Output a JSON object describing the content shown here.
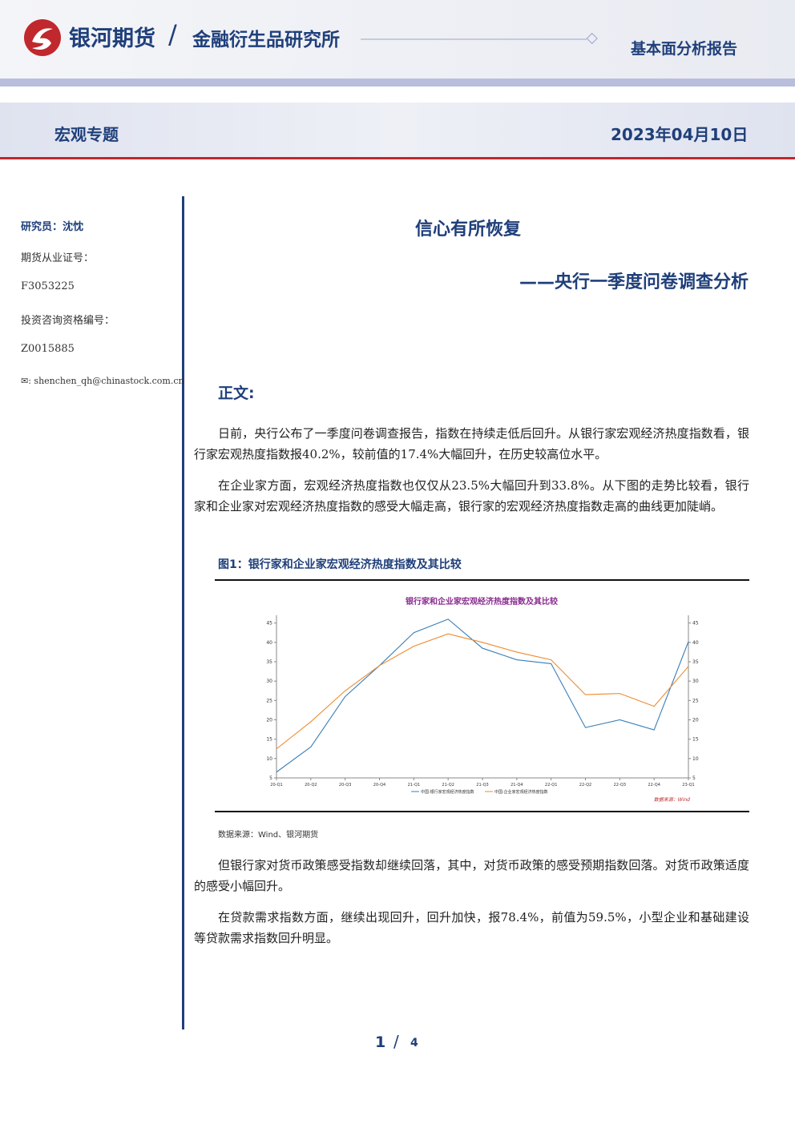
{
  "header": {
    "brand": "银河期货",
    "institute": "金融衍生品研究所",
    "report_type": "基本面分析报告",
    "section": "宏观专题",
    "date": "2023年04月10日"
  },
  "sidebar": {
    "researcher": "研究员：沈忱",
    "license_label": "期货从业证号：",
    "license_number": "F3053225",
    "advisor_label": "投资咨询资格编号：",
    "advisor_number": "Z0015885",
    "email": "shenchen_qh@chinastock.com.cn"
  },
  "article": {
    "title": "信心有所恢复",
    "subtitle": "——央行一季度问卷调查分析",
    "heading": "正文:",
    "paragraphs": [
      "日前，央行公布了一季度问卷调查报告，指数在持续走低后回升。从银行家宏观经济热度指数看，银行家宏观热度指数报40.2%，较前值的17.4%大幅回升，在历史较高位水平。",
      "在企业家方面，宏观经济热度指数也仅仅从23.5%大幅回升到33.8%。从下图的走势比较看，银行家和企业家对宏观经济热度指数的感受大幅走高，银行家的宏观经济热度指数走高的曲线更加陡峭。",
      "但银行家对货币政策感受指数却继续回落，其中，对货币政策的感受预期指数回落。对货币政策适度的感受小幅回升。",
      "在贷款需求指数方面，继续出现回升，回升加快，报78.4%，前值为59.5%，小型企业和基础建设等贷款需求指数回升明显。"
    ],
    "figure_caption": "图1：银行家和企业家宏观经济热度指数及其比较",
    "figure_source": "数据来源：Wind、银河期货"
  },
  "chart_data": {
    "type": "line",
    "title": "银行家和企业家宏观经济热度指数及其比较",
    "source": "数据来源：Wind",
    "categories": [
      "20-Q1",
      "20-Q2",
      "20-Q3",
      "20-Q4",
      "21-Q1",
      "21-Q2",
      "21-Q3",
      "21-Q4",
      "22-Q1",
      "22-Q2",
      "22-Q3",
      "22-Q4",
      "23-Q1"
    ],
    "series": [
      {
        "name": "中国:银行家宏观经济热度指数",
        "color": "#3a7fb8",
        "values": [
          6.5,
          13,
          26,
          34,
          42.5,
          46,
          38.5,
          35.5,
          34.5,
          18,
          20,
          17.4,
          40.2
        ]
      },
      {
        "name": "中国:企业家宏观经济热度指数",
        "color": "#ee8a2c",
        "values": [
          12.5,
          19.5,
          27.5,
          34,
          39,
          42.2,
          40,
          37.5,
          35.5,
          26.5,
          26.8,
          23.5,
          33.8
        ]
      }
    ],
    "ylim": [
      5,
      47
    ],
    "yticks": [
      5,
      10,
      15,
      20,
      25,
      30,
      35,
      40,
      45
    ],
    "y2lim": [
      5,
      47
    ],
    "y2ticks": [
      5,
      10,
      15,
      20,
      25,
      30,
      35,
      40,
      45
    ]
  },
  "footer": {
    "page": "1",
    "total": "4"
  }
}
